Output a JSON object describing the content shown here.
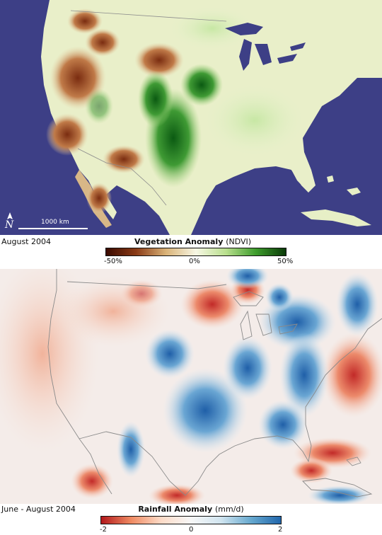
{
  "vegetation_map": {
    "date_label": "August 2004",
    "scale_label": "1000 km",
    "north_label": "N",
    "legend": {
      "title": "Vegetation Anomaly",
      "unit": "(NDVI)",
      "ticks": [
        "-50%",
        "0%",
        "50%"
      ],
      "colors": [
        "#3a0a00",
        "#8a3a16",
        "#d9b277",
        "#f7f7e4",
        "#b9df8e",
        "#3d9c2c",
        "#0a3a08"
      ]
    }
  },
  "rainfall_map": {
    "date_label": "June - August 2004",
    "legend": {
      "title": "Rainfall Anomaly",
      "unit": "(mm/d)",
      "ticks": [
        "-2",
        "0",
        "2"
      ],
      "colors": [
        "#b2181b",
        "#ef8a62",
        "#fddbc7",
        "#f7f7f7",
        "#d1e5f0",
        "#67a9cf",
        "#2166ac"
      ]
    }
  }
}
